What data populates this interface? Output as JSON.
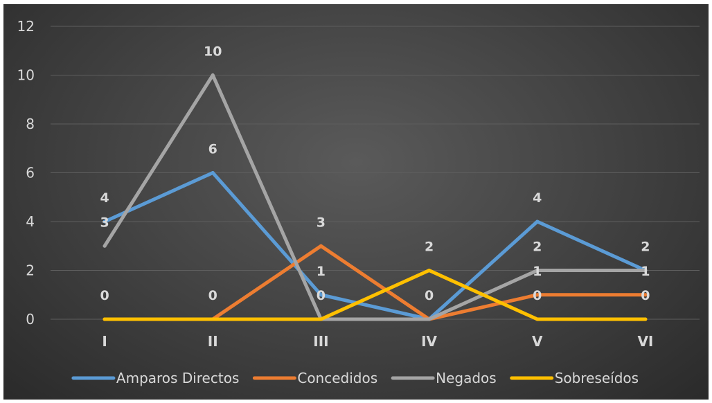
{
  "chart_data": {
    "type": "line",
    "categories": [
      "I",
      "II",
      "III",
      "IV",
      "V",
      "VI"
    ],
    "ylim": [
      0,
      12
    ],
    "yticks": [
      0,
      2,
      4,
      6,
      8,
      10,
      12
    ],
    "grid": true,
    "legend_position": "bottom",
    "data_labels": true,
    "series": [
      {
        "name": "Amparos Directos",
        "color": "#5B9BD5",
        "values": [
          4,
          6,
          1,
          0,
          4,
          2
        ]
      },
      {
        "name": "Concedidos",
        "color": "#ED7D31",
        "values": [
          0,
          0,
          3,
          0,
          1,
          1
        ]
      },
      {
        "name": "Negados",
        "color": "#A5A5A5",
        "values": [
          3,
          10,
          0,
          0,
          2,
          2
        ]
      },
      {
        "name": "Sobreseídos",
        "color": "#FFC000",
        "values": [
          0,
          0,
          0,
          2,
          0,
          0
        ]
      }
    ],
    "visible_data_labels": [
      {
        "category": "I",
        "texts": [
          "4",
          "3",
          "0"
        ]
      },
      {
        "category": "II",
        "texts": [
          "10",
          "6",
          "0"
        ]
      },
      {
        "category": "III",
        "texts": [
          "3",
          "1",
          "0"
        ]
      },
      {
        "category": "IV",
        "texts": [
          "2",
          "0"
        ]
      },
      {
        "category": "V",
        "texts": [
          "4",
          "2",
          "1",
          "0"
        ]
      },
      {
        "category": "VI",
        "texts": [
          "2",
          "1",
          "0"
        ]
      }
    ]
  }
}
